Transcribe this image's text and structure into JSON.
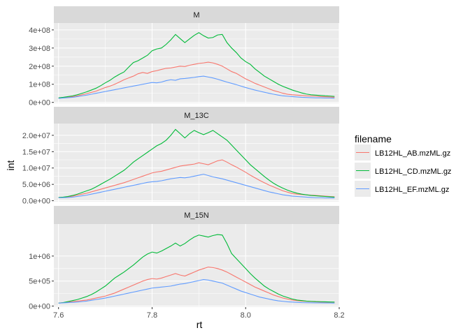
{
  "chart_data": {
    "type": "line",
    "xlabel": "rt",
    "ylabel": "int",
    "x_ticks": [
      "7.6",
      "7.8",
      "8.0",
      "8.2"
    ],
    "xlim": [
      7.59,
      8.2
    ],
    "legend": {
      "title": "filename",
      "placement": "right"
    },
    "colors": {
      "LB12HL_AB.mzML.gz": "#F8766D",
      "LB12HL_CD.mzML.gz": "#00BA38",
      "LB12HL_EF.mzML.gz": "#619CFF"
    },
    "x": [
      7.6,
      7.61,
      7.62,
      7.63,
      7.64,
      7.65,
      7.66,
      7.67,
      7.68,
      7.69,
      7.7,
      7.71,
      7.72,
      7.73,
      7.74,
      7.75,
      7.76,
      7.77,
      7.78,
      7.79,
      7.8,
      7.81,
      7.82,
      7.83,
      7.84,
      7.85,
      7.86,
      7.87,
      7.88,
      7.89,
      7.9,
      7.91,
      7.92,
      7.93,
      7.94,
      7.95,
      7.96,
      7.97,
      7.98,
      7.99,
      8.0,
      8.01,
      8.02,
      8.03,
      8.04,
      8.05,
      8.06,
      8.07,
      8.08,
      8.09,
      8.1,
      8.11,
      8.12,
      8.13,
      8.14,
      8.15,
      8.16,
      8.17,
      8.18,
      8.19
    ],
    "facets": [
      {
        "name": "M",
        "y_ticks": [
          0,
          100000000,
          200000000,
          300000000,
          400000000
        ],
        "y_tick_labels": [
          "0e+00",
          "1e+08",
          "2e+08",
          "3e+08",
          "4e+08"
        ],
        "ylim": [
          -5000000,
          438000000
        ],
        "series": [
          {
            "name": "LB12HL_AB.mzML.gz",
            "values": [
              22000000,
              25000000,
              28000000,
              32000000,
              36000000,
              42000000,
              48000000,
              55000000,
              62000000,
              72000000,
              82000000,
              90000000,
              100000000,
              112000000,
              125000000,
              135000000,
              145000000,
              158000000,
              165000000,
              160000000,
              170000000,
              175000000,
              182000000,
              188000000,
              190000000,
              195000000,
              200000000,
              198000000,
              205000000,
              210000000,
              215000000,
              218000000,
              222000000,
              218000000,
              210000000,
              200000000,
              185000000,
              170000000,
              160000000,
              145000000,
              130000000,
              118000000,
              105000000,
              95000000,
              85000000,
              75000000,
              65000000,
              58000000,
              50000000,
              45000000,
              42000000,
              40000000,
              38000000,
              36000000,
              35000000,
              34000000,
              32000000,
              31000000,
              30000000,
              28000000
            ]
          },
          {
            "name": "LB12HL_CD.mzML.gz",
            "values": [
              25000000,
              28000000,
              32000000,
              36000000,
              42000000,
              50000000,
              58000000,
              68000000,
              78000000,
              92000000,
              108000000,
              122000000,
              140000000,
              155000000,
              168000000,
              195000000,
              220000000,
              230000000,
              245000000,
              260000000,
              285000000,
              295000000,
              300000000,
              320000000,
              345000000,
              375000000,
              352000000,
              330000000,
              350000000,
              370000000,
              385000000,
              368000000,
              355000000,
              358000000,
              372000000,
              375000000,
              330000000,
              300000000,
              275000000,
              245000000,
              225000000,
              210000000,
              185000000,
              165000000,
              145000000,
              130000000,
              115000000,
              100000000,
              88000000,
              78000000,
              68000000,
              60000000,
              52000000,
              46000000,
              42000000,
              40000000,
              38000000,
              36000000,
              35000000,
              33000000
            ]
          },
          {
            "name": "LB12HL_EF.mzML.gz",
            "values": [
              22000000,
              24000000,
              26000000,
              28000000,
              32000000,
              36000000,
              40000000,
              45000000,
              50000000,
              55000000,
              60000000,
              65000000,
              70000000,
              75000000,
              80000000,
              85000000,
              90000000,
              95000000,
              100000000,
              105000000,
              110000000,
              108000000,
              112000000,
              120000000,
              125000000,
              122000000,
              130000000,
              132000000,
              135000000,
              138000000,
              142000000,
              145000000,
              140000000,
              135000000,
              128000000,
              120000000,
              112000000,
              105000000,
              98000000,
              90000000,
              82000000,
              75000000,
              68000000,
              62000000,
              56000000,
              50000000,
              45000000,
              40000000,
              36000000,
              34000000,
              32000000,
              30000000,
              28000000,
              27000000,
              26000000,
              25000000,
              25000000,
              24000000,
              24000000,
              23000000
            ]
          }
        ]
      },
      {
        "name": "M_13C",
        "y_ticks": [
          0,
          5000000,
          10000000,
          15000000,
          20000000
        ],
        "y_tick_labels": [
          "0.0e+00",
          "5.0e+06",
          "1.0e+07",
          "1.5e+07",
          "2.0e+07"
        ],
        "ylim": [
          -300000,
          23600000
        ],
        "series": [
          {
            "name": "LB12HL_AB.mzML.gz",
            "values": [
              900000,
              1000000,
              1200000,
              1400000,
              1700000,
              2000000,
              2300000,
              2700000,
              3100000,
              3500000,
              3900000,
              4300000,
              4700000,
              5100000,
              5500000,
              6000000,
              6500000,
              7000000,
              7500000,
              8000000,
              8500000,
              8800000,
              9000000,
              9400000,
              9800000,
              10200000,
              10600000,
              10800000,
              11000000,
              11200000,
              11600000,
              11300000,
              11000000,
              11600000,
              12200000,
              12500000,
              11800000,
              11000000,
              10300000,
              9500000,
              8700000,
              7800000,
              7000000,
              6200000,
              5500000,
              4800000,
              4200000,
              3600000,
              3000000,
              2600000,
              2200000,
              2000000,
              1900000,
              1800000,
              1700000,
              1600000,
              1500000,
              1400000,
              1300000,
              1200000
            ]
          },
          {
            "name": "LB12HL_CD.mzML.gz",
            "values": [
              1000000,
              1100000,
              1300000,
              1600000,
              2000000,
              2500000,
              3000000,
              3500000,
              4200000,
              5000000,
              5800000,
              6600000,
              7500000,
              8400000,
              9300000,
              10500000,
              11800000,
              12800000,
              13800000,
              14800000,
              15800000,
              16800000,
              17500000,
              18500000,
              20000000,
              21800000,
              20500000,
              19200000,
              20500000,
              21500000,
              20800000,
              20200000,
              20800000,
              21500000,
              20500000,
              19500000,
              18500000,
              17000000,
              15500000,
              14000000,
              12500000,
              11000000,
              9800000,
              8600000,
              7400000,
              6300000,
              5300000,
              4500000,
              3800000,
              3200000,
              2700000,
              2300000,
              2000000,
              1800000,
              1600000,
              1500000,
              1400000,
              1300000,
              1200000,
              1100000
            ]
          },
          {
            "name": "LB12HL_EF.mzML.gz",
            "values": [
              900000,
              950000,
              1000000,
              1100000,
              1300000,
              1500000,
              1700000,
              2000000,
              2300000,
              2600000,
              2900000,
              3200000,
              3500000,
              3800000,
              4100000,
              4400000,
              4700000,
              5000000,
              5300000,
              5600000,
              5800000,
              5900000,
              6100000,
              6400000,
              6700000,
              6900000,
              7100000,
              7000000,
              7200000,
              7500000,
              7800000,
              8100000,
              7700000,
              7300000,
              7000000,
              6700000,
              6300000,
              5900000,
              5500000,
              5100000,
              4700000,
              4300000,
              3900000,
              3500000,
              3100000,
              2700000,
              2400000,
              2100000,
              1800000,
              1600000,
              1400000,
              1300000,
              1200000,
              1100000,
              1000000,
              900000,
              900000,
              850000,
              850000,
              800000
            ]
          }
        ]
      },
      {
        "name": "M_15N",
        "y_ticks": [
          0,
          500000,
          1000000
        ],
        "y_tick_labels": [
          "0e+00",
          "5e+05",
          "1e+06"
        ],
        "ylim": [
          -20000,
          1640000
        ],
        "series": [
          {
            "name": "LB12HL_AB.mzML.gz",
            "values": [
              60000,
              70000,
              80000,
              90000,
              100000,
              110000,
              120000,
              140000,
              160000,
              180000,
              200000,
              230000,
              260000,
              300000,
              340000,
              380000,
              420000,
              460000,
              500000,
              530000,
              550000,
              540000,
              560000,
              590000,
              620000,
              650000,
              620000,
              600000,
              640000,
              680000,
              720000,
              750000,
              780000,
              770000,
              750000,
              720000,
              680000,
              630000,
              580000,
              530000,
              480000,
              430000,
              380000,
              340000,
              300000,
              260000,
              220000,
              190000,
              160000,
              140000,
              120000,
              110000,
              100000,
              95000,
              90000,
              85000,
              80000,
              80000,
              78000,
              75000
            ]
          },
          {
            "name": "LB12HL_CD.mzML.gz",
            "values": [
              60000,
              70000,
              90000,
              110000,
              130000,
              160000,
              190000,
              230000,
              280000,
              340000,
              400000,
              480000,
              560000,
              620000,
              680000,
              750000,
              820000,
              900000,
              980000,
              1040000,
              1080000,
              1060000,
              1100000,
              1150000,
              1200000,
              1260000,
              1200000,
              1250000,
              1320000,
              1380000,
              1420000,
              1400000,
              1380000,
              1410000,
              1430000,
              1420000,
              1250000,
              1050000,
              950000,
              850000,
              750000,
              650000,
              560000,
              480000,
              400000,
              340000,
              290000,
              240000,
              200000,
              170000,
              140000,
              120000,
              110000,
              100000,
              95000,
              90000,
              88000,
              85000,
              82000,
              80000
            ]
          },
          {
            "name": "LB12HL_EF.mzML.gz",
            "values": [
              60000,
              65000,
              70000,
              75000,
              80000,
              90000,
              100000,
              115000,
              130000,
              145000,
              160000,
              180000,
              200000,
              220000,
              240000,
              260000,
              280000,
              300000,
              320000,
              340000,
              360000,
              370000,
              380000,
              390000,
              400000,
              420000,
              440000,
              450000,
              470000,
              490000,
              510000,
              530000,
              520000,
              500000,
              480000,
              460000,
              420000,
              380000,
              340000,
              300000,
              270000,
              240000,
              210000,
              180000,
              160000,
              140000,
              120000,
              105000,
              95000,
              85000,
              80000,
              75000,
              70000,
              68000,
              66000,
              65000,
              64000,
              63000,
              62000,
              60000
            ]
          }
        ]
      }
    ]
  }
}
